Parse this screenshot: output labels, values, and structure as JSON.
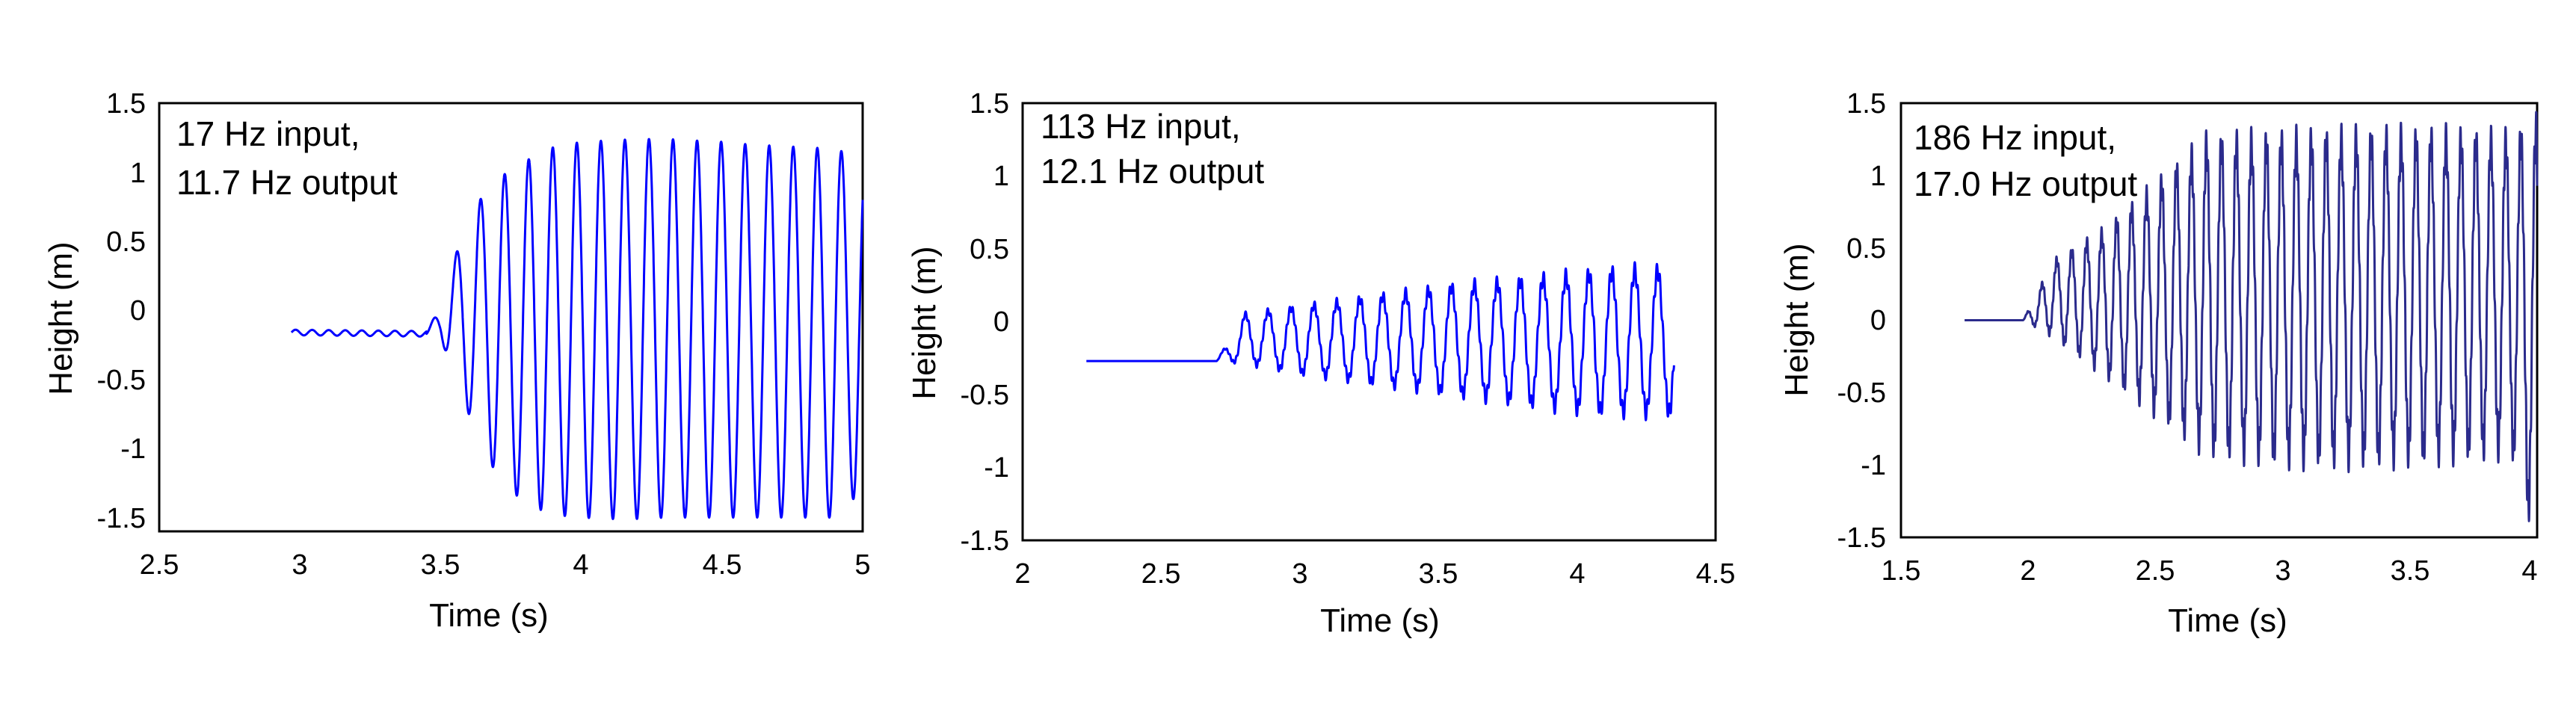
{
  "chart_data": [
    {
      "type": "line",
      "annotation": [
        "17 Hz input,",
        "11.7 Hz output"
      ],
      "xlabel": "Time (s)",
      "ylabel": "Height (m)",
      "xlim": [
        2.5,
        5
      ],
      "ylim": [
        -1.6,
        1.5
      ],
      "xticks": [
        "2.5",
        "3",
        "3.5",
        "4",
        "4.5",
        "5"
      ],
      "yticks": [
        "1.5",
        "1",
        "0.5",
        "0",
        "-0.5",
        "-1",
        "-1.5"
      ],
      "grid": false,
      "line_color": "#0000ff",
      "series": [
        {
          "x": [
            2.97,
            3.45,
            3.5,
            3.6,
            3.7,
            3.8,
            3.9,
            4.0,
            4.1,
            4.2,
            4.3,
            4.4,
            4.5,
            4.6,
            4.7,
            4.8,
            4.9,
            5.0
          ],
          "y": [
            -0.16,
            -0.17,
            0.05,
            0.7,
            0.95,
            1.08,
            1.18,
            1.22,
            1.23,
            1.24,
            1.24,
            1.23,
            1.22,
            1.2,
            1.19,
            1.18,
            1.17,
            1.1
          ],
          "y_min": [
            -0.16,
            -0.17,
            -0.2,
            -0.75,
            -1.2,
            -1.4,
            -1.48,
            -1.5,
            -1.51,
            -1.51,
            -1.5,
            -1.5,
            -1.5,
            -1.5,
            -1.5,
            -1.5,
            -1.5,
            -1.3
          ],
          "frequency_hz": 11.7,
          "pre_onset_frequency_hz": 17
        }
      ]
    },
    {
      "type": "line",
      "annotation": [
        "113 Hz input,",
        "12.1 Hz output"
      ],
      "xlabel": "Time (s)",
      "ylabel": "Height (m)",
      "xlim": [
        2,
        4.5
      ],
      "ylim": [
        -1.5,
        1.5
      ],
      "xticks": [
        "2",
        "2.5",
        "3",
        "3.5",
        "4",
        "4.5"
      ],
      "yticks": [
        "1.5",
        "1",
        "0.5",
        "0",
        "-0.5",
        "-1",
        "-1.5"
      ],
      "grid": false,
      "line_color": "#0000ff",
      "series": [
        {
          "x": [
            2.23,
            2.7,
            2.8,
            3.0,
            3.2,
            3.4,
            3.6,
            3.8,
            4.0,
            4.2,
            4.35
          ],
          "y": [
            -0.27,
            -0.27,
            0.05,
            0.1,
            0.15,
            0.2,
            0.25,
            0.28,
            0.32,
            0.35,
            0.35
          ],
          "y_min": [
            -0.27,
            -0.27,
            -0.28,
            -0.35,
            -0.4,
            -0.45,
            -0.5,
            -0.55,
            -0.6,
            -0.62,
            -0.62
          ],
          "frequency_hz": 12.1
        }
      ]
    },
    {
      "type": "line",
      "annotation": [
        "186 Hz input,",
        "17.0 Hz output"
      ],
      "xlabel": "Time (s)",
      "ylabel": "Height (m)",
      "xlim": [
        1.5,
        4
      ],
      "ylim": [
        -1.5,
        1.5
      ],
      "xticks": [
        "1.5",
        "2",
        "2.5",
        "3",
        "3.5",
        "4"
      ],
      "yticks": [
        "1.5",
        "1",
        "0.5",
        "0",
        "-0.5",
        "-1",
        "-1.5"
      ],
      "grid": false,
      "line_color": "#2b2b8c",
      "series": [
        {
          "x": [
            1.75,
            1.98,
            2.1,
            2.3,
            2.5,
            2.7,
            3.0,
            3.3,
            3.6,
            3.9,
            4.0
          ],
          "y": [
            0,
            0,
            0.4,
            0.6,
            0.9,
            1.2,
            1.22,
            1.24,
            1.24,
            1.22,
            1.3
          ],
          "y_min": [
            0,
            0,
            -0.1,
            -0.35,
            -0.6,
            -0.85,
            -0.92,
            -0.92,
            -0.9,
            -0.85,
            -1.5
          ],
          "frequency_hz": 17.0
        }
      ]
    }
  ]
}
